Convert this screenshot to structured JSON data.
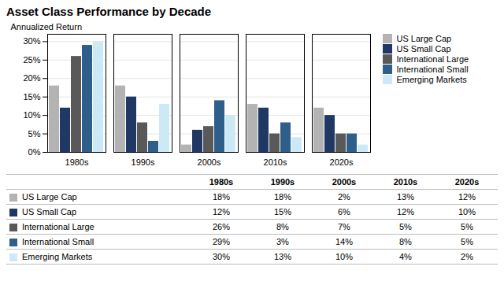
{
  "chart_data": {
    "type": "bar",
    "title": "Asset Class Performance by Decade",
    "ylabel": "Annualized Return",
    "categories": [
      "1980s",
      "1990s",
      "2000s",
      "2010s",
      "2020s"
    ],
    "series": [
      {
        "name": "US Large Cap",
        "color": "#b3b3b3",
        "values": [
          18,
          18,
          2,
          13,
          12
        ],
        "value_labels": [
          "18%",
          "18%",
          "2%",
          "13%",
          "12%"
        ]
      },
      {
        "name": "US Small Cap",
        "color": "#1f3864",
        "values": [
          12,
          15,
          6,
          12,
          10
        ],
        "value_labels": [
          "12%",
          "15%",
          "6%",
          "12%",
          "10%"
        ]
      },
      {
        "name": "International Large",
        "color": "#595959",
        "values": [
          26,
          8,
          7,
          5,
          5
        ],
        "value_labels": [
          "26%",
          "8%",
          "7%",
          "5%",
          "5%"
        ]
      },
      {
        "name": "International Small",
        "color": "#2e5f8a",
        "values": [
          29,
          3,
          14,
          8,
          5
        ],
        "value_labels": [
          "29%",
          "3%",
          "14%",
          "8%",
          "5%"
        ]
      },
      {
        "name": "Emerging Markets",
        "color": "#cce9f5",
        "values": [
          30,
          13,
          10,
          4,
          2
        ],
        "value_labels": [
          "30%",
          "13%",
          "10%",
          "4%",
          "2%"
        ]
      }
    ],
    "ylim": [
      0,
      32
    ],
    "yticks": [
      {
        "value": 0,
        "label": "0%"
      },
      {
        "value": 5,
        "label": "5%"
      },
      {
        "value": 10,
        "label": "10%"
      },
      {
        "value": 15,
        "label": "15%"
      },
      {
        "value": 20,
        "label": "20%"
      },
      {
        "value": 25,
        "label": "25%"
      },
      {
        "value": 30,
        "label": "30%"
      }
    ],
    "grid": true,
    "legend": "right"
  }
}
